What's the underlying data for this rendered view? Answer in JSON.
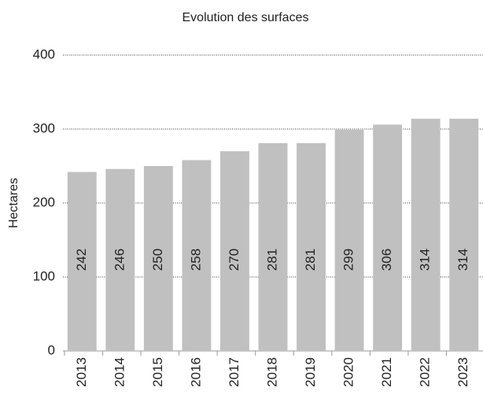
{
  "chart_data": {
    "type": "bar",
    "title": "Evolution des surfaces",
    "y_label": "Hectares",
    "categories": [
      "2013",
      "2014",
      "2015",
      "2016",
      "2017",
      "2018",
      "2019",
      "2020",
      "2021",
      "2022",
      "2023"
    ],
    "values": [
      242,
      246,
      250,
      258,
      270,
      281,
      281,
      299,
      306,
      314,
      314
    ],
    "color": "#c0c0c0",
    "ylim": [
      0,
      400
    ],
    "yticks": [
      0,
      100,
      200,
      300,
      400
    ],
    "grid": true
  }
}
